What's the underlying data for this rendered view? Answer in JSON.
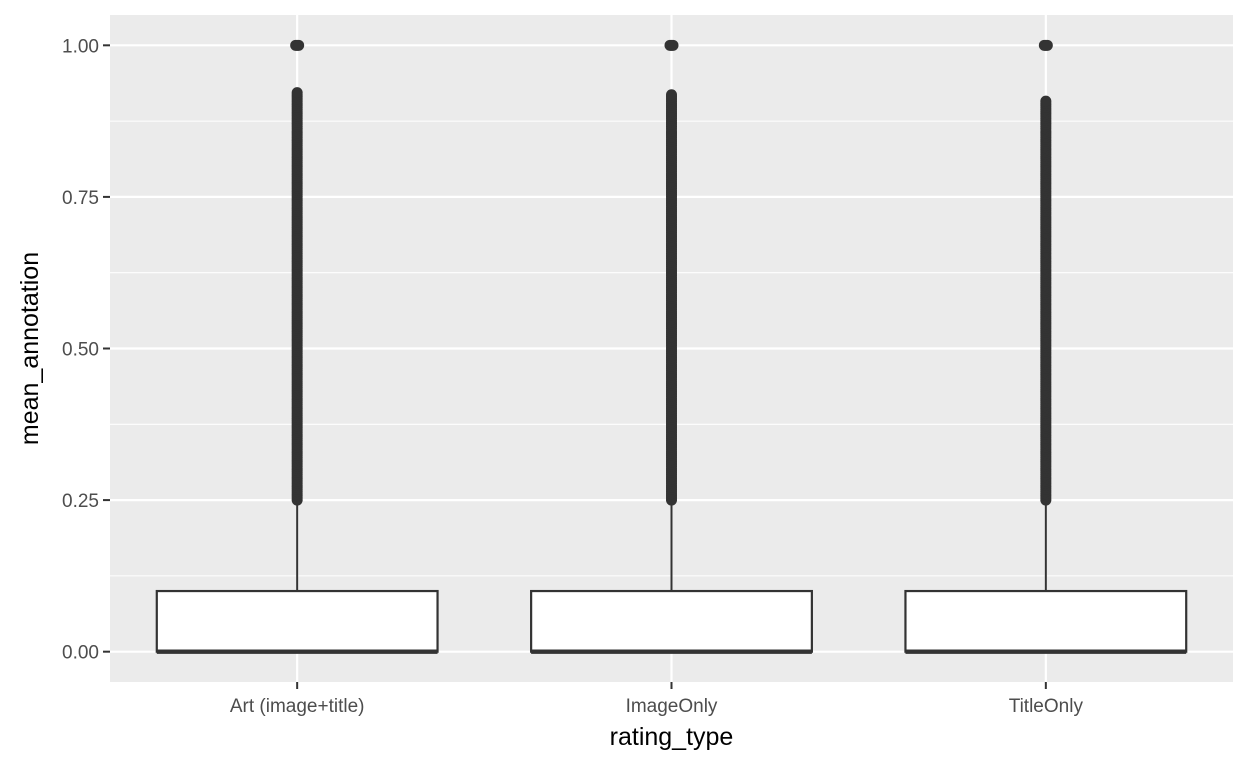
{
  "chart_data": {
    "type": "boxplot",
    "title": "",
    "xlabel": "rating_type",
    "ylabel": "mean_annotation",
    "categories": [
      "Art (image+title)",
      "ImageOnly",
      "TitleOnly"
    ],
    "y_ticks": [
      {
        "value": 0.0,
        "label": "0.00"
      },
      {
        "value": 0.25,
        "label": "0.25"
      },
      {
        "value": 0.5,
        "label": "0.50"
      },
      {
        "value": 0.75,
        "label": "0.75"
      },
      {
        "value": 1.0,
        "label": "1.00"
      }
    ],
    "ylim": [
      -0.05,
      1.05
    ],
    "grid": true,
    "legend": "none",
    "colors": {
      "panel": "#ebebeb",
      "grid": "#ffffff",
      "box_fill": "#ffffff",
      "box_line": "#333333",
      "outlier": "#333333"
    },
    "boxes": [
      {
        "category": "Art (image+title)",
        "min": 0.0,
        "q1": 0.0,
        "median": 0.0,
        "q3": 0.1,
        "whisker_high": 0.25,
        "outlier_range": [
          0.25,
          0.925
        ],
        "outlier_top": 1.0
      },
      {
        "category": "ImageOnly",
        "min": 0.0,
        "q1": 0.0,
        "median": 0.0,
        "q3": 0.1,
        "whisker_high": 0.25,
        "outlier_range": [
          0.25,
          0.92
        ],
        "outlier_top": 1.0
      },
      {
        "category": "TitleOnly",
        "min": 0.0,
        "q1": 0.0,
        "median": 0.0,
        "q3": 0.1,
        "whisker_high": 0.25,
        "outlier_range": [
          0.25,
          0.91
        ],
        "outlier_top": 1.0
      }
    ]
  }
}
